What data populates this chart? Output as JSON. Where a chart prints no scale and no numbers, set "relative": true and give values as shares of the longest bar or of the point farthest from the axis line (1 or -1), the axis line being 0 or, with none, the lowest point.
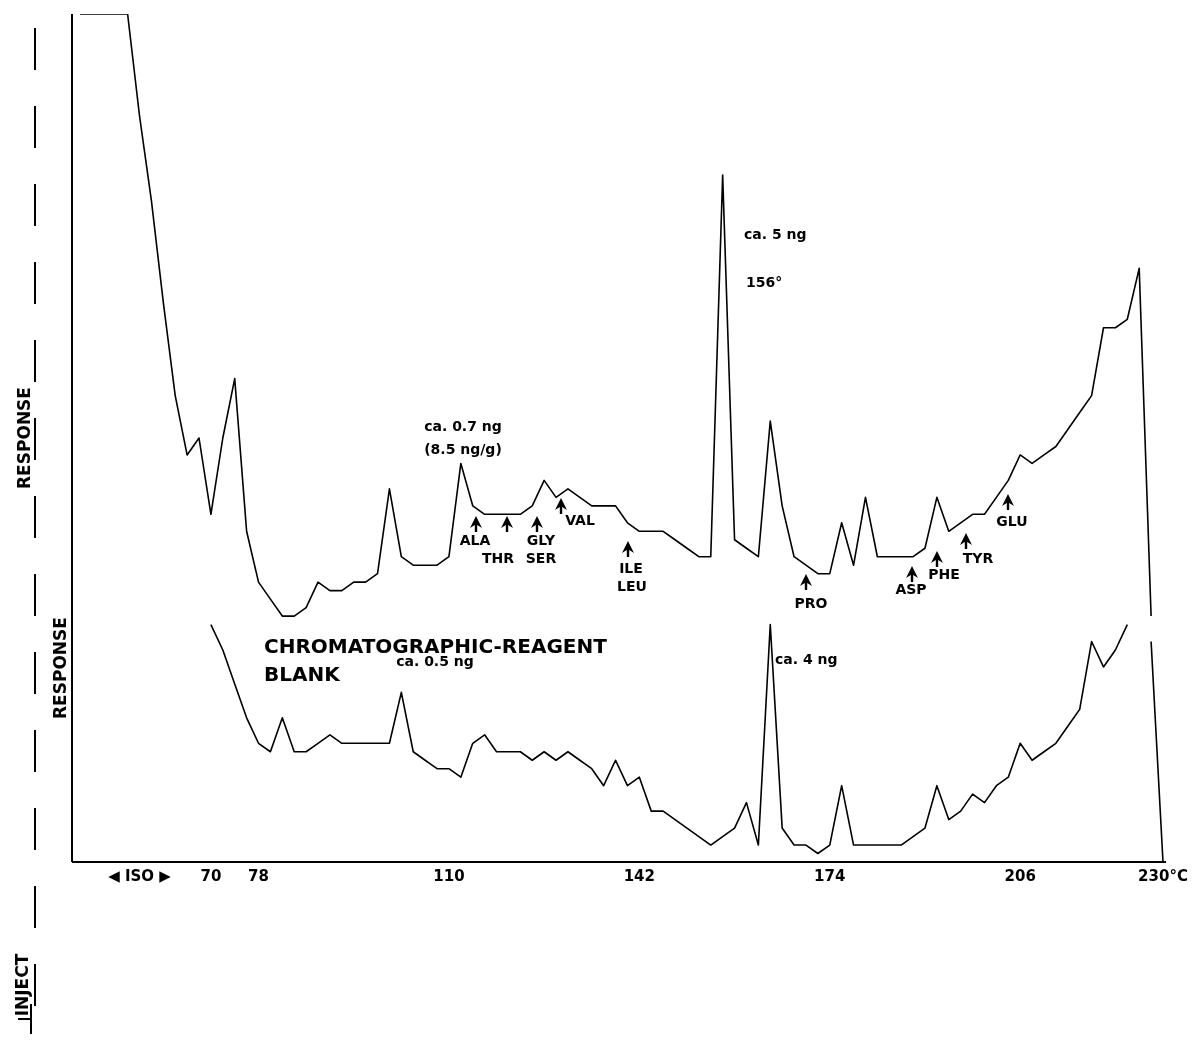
{
  "chart_data": {
    "type": "line",
    "ylabel": "RESPONSE",
    "relative": true,
    "categories": [
      null,
      null,
      null,
      null,
      null,
      "◀ ISO ▶",
      null,
      null,
      null,
      null,
      null,
      "70",
      null,
      null,
      null,
      "78",
      null,
      null,
      null,
      null,
      null,
      null,
      null,
      null,
      null,
      null,
      null,
      null,
      null,
      null,
      null,
      "110",
      null,
      null,
      null,
      null,
      null,
      null,
      null,
      null,
      null,
      null,
      null,
      null,
      null,
      null,
      null,
      "142",
      null,
      null,
      null,
      null,
      null,
      null,
      null,
      null,
      null,
      null,
      null,
      null,
      null,
      null,
      null,
      "174",
      null,
      null,
      null,
      null,
      null,
      null,
      null,
      null,
      null,
      null,
      null,
      null,
      null,
      null,
      null,
      "206",
      null,
      null,
      null,
      null,
      null,
      null,
      null,
      null,
      null,
      null,
      null,
      "230°C"
    ],
    "series": [
      {
        "color": "#000000",
        "values": [
          1,
          1,
          1,
          1,
          1,
          0.88,
          0.78,
          0.66,
          0.55,
          0.48,
          0.5,
          0.41,
          0.5,
          0.57,
          0.39,
          0.33,
          0.31,
          0.29,
          0.29,
          0.3,
          0.33,
          0.32,
          0.32,
          0.33,
          0.33,
          0.34,
          0.44,
          0.36,
          0.35,
          0.35,
          0.35,
          0.36,
          0.47,
          0.42,
          0.41,
          0.41,
          0.41,
          0.41,
          0.42,
          0.45,
          0.43,
          0.44,
          0.43,
          0.42,
          0.42,
          0.42,
          0.4,
          0.39,
          0.39,
          0.39,
          0.38,
          0.37,
          0.36,
          0.36,
          0.81,
          0.38,
          0.37,
          0.36,
          0.52,
          0.42,
          0.36,
          0.35,
          0.34,
          0.34,
          0.4,
          0.35,
          0.43,
          0.36,
          0.36,
          0.36,
          0.36,
          0.37,
          0.43,
          0.39,
          0.4,
          0.41,
          0.41,
          0.43,
          0.45,
          0.48,
          0.47,
          0.48,
          0.49,
          0.51,
          0.53,
          0.55,
          0.63,
          0.63,
          0.64,
          0.7,
          0.29,
          null
        ]
      },
      {
        "name": "CHROMATOGRAPHIC-REAGENT BLANK",
        "color": "#000000",
        "values": [
          null,
          null,
          null,
          null,
          null,
          null,
          null,
          null,
          null,
          null,
          null,
          0.28,
          0.25,
          0.21,
          0.17,
          0.14,
          0.13,
          0.17,
          0.13,
          0.13,
          0.14,
          0.15,
          0.14,
          0.14,
          0.14,
          0.14,
          0.14,
          0.2,
          0.13,
          0.12,
          0.11,
          0.11,
          0.1,
          0.14,
          0.15,
          0.13,
          0.13,
          0.13,
          0.12,
          0.13,
          0.12,
          0.13,
          0.12,
          0.11,
          0.09,
          0.12,
          0.09,
          0.1,
          0.06,
          0.06,
          0.05,
          0.04,
          0.03,
          0.02,
          0.03,
          0.04,
          0.07,
          0.02,
          0.28,
          0.04,
          0.02,
          0.02,
          0.01,
          0.02,
          0.09,
          0.02,
          0.02,
          0.02,
          0.02,
          0.02,
          0.03,
          0.04,
          0.09,
          0.05,
          0.06,
          0.08,
          0.07,
          0.09,
          0.1,
          0.14,
          0.12,
          0.13,
          0.14,
          0.16,
          0.18,
          0.26,
          0.23,
          0.25,
          0.28,
          null,
          0.26,
          0
        ]
      }
    ],
    "annotations": [
      "ca. 0.7 ng",
      "(8.5 ng/g)",
      "ca. 5 ng",
      "156°",
      "ALA",
      "THR",
      "GLY",
      "SER",
      "VAL",
      "ILE",
      "LEU",
      "PRO",
      "ASP",
      "PHE",
      "TYR",
      "GLU",
      "ca. 0.5 ng",
      "ca. 4 ng",
      "RESPONSE",
      "INJECT"
    ]
  }
}
